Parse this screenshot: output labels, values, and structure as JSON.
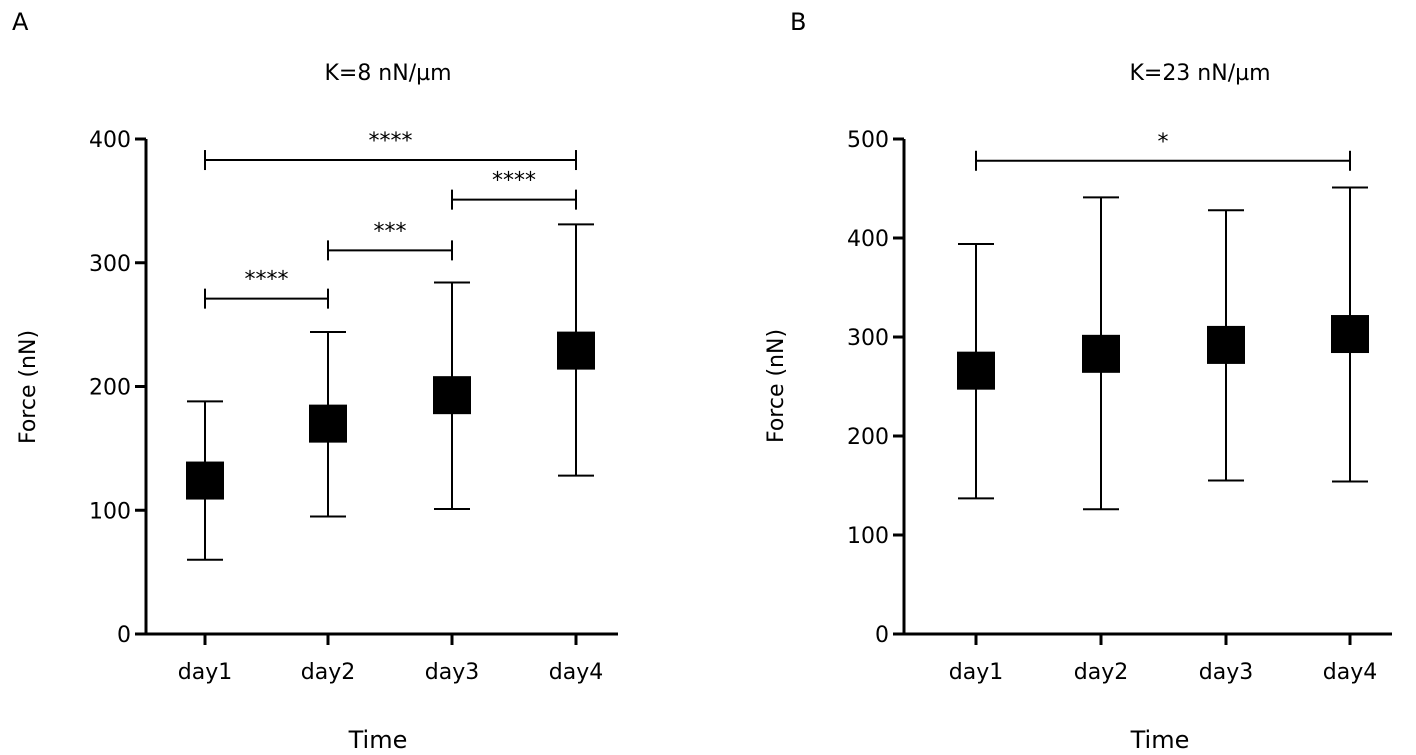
{
  "chart_data": [
    {
      "panel_label": "A",
      "type": "scatter",
      "title": "K=8 nN/µm",
      "xlabel": "Time",
      "ylabel": "Force (nN)",
      "categories": [
        "day1",
        "day2",
        "day3",
        "day4"
      ],
      "ylim": [
        0,
        400
      ],
      "yticks": [
        0,
        100,
        200,
        300,
        400
      ],
      "ytick_labels": [
        "0",
        "100",
        "200",
        "300",
        "400"
      ],
      "series": [
        {
          "values": [
            124,
            170,
            193,
            229
          ],
          "err_low": [
            60,
            95,
            101,
            128
          ],
          "err_high": [
            188,
            244,
            284,
            331
          ]
        }
      ],
      "significance": [
        {
          "from": 0,
          "to": 3,
          "y": 383,
          "label": "****"
        },
        {
          "from": 2,
          "to": 3,
          "y": 351,
          "label": "****"
        },
        {
          "from": 1,
          "to": 2,
          "y": 310,
          "label": "***"
        },
        {
          "from": 0,
          "to": 1,
          "y": 271,
          "label": "****"
        }
      ],
      "grid": false,
      "marker": "filled-square",
      "color": "#000000"
    },
    {
      "panel_label": "B",
      "type": "scatter",
      "title": "K=23 nN/µm",
      "xlabel": "Time",
      "ylabel": "Force (nN)",
      "categories": [
        "day1",
        "day2",
        "day3",
        "day4"
      ],
      "ylim": [
        0,
        500
      ],
      "yticks": [
        0,
        100,
        200,
        300,
        400,
        500
      ],
      "ytick_labels": [
        "0",
        "100",
        "200",
        "300",
        "400",
        "500"
      ],
      "series": [
        {
          "values": [
            266,
            283,
            292,
            303
          ],
          "err_low": [
            137,
            126,
            155,
            154
          ],
          "err_high": [
            394,
            441,
            428,
            451
          ]
        }
      ],
      "significance": [
        {
          "from": 0,
          "to": 3,
          "y": 478,
          "label": "*"
        }
      ],
      "grid": false,
      "marker": "filled-square",
      "color": "#000000"
    }
  ]
}
